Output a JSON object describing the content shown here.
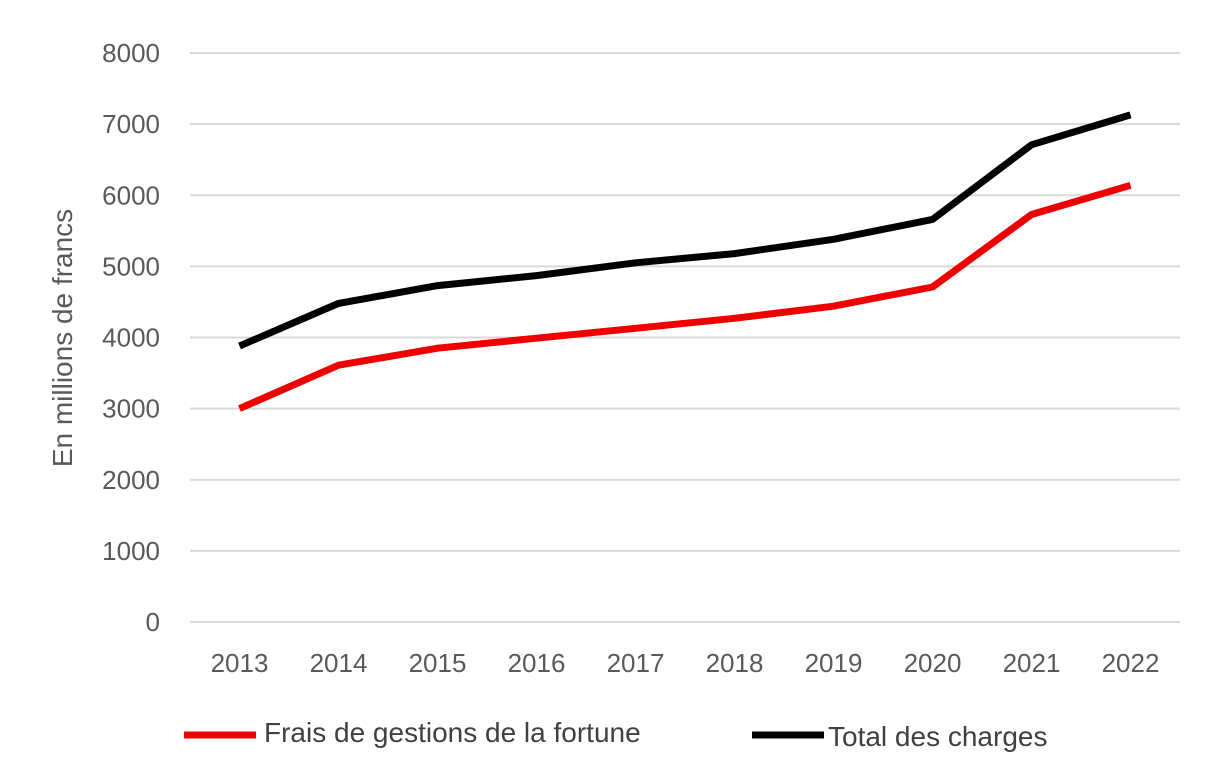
{
  "chart_data": {
    "type": "line",
    "title": "",
    "xlabel": "",
    "ylabel": "En millions de francs",
    "categories": [
      "2013",
      "2014",
      "2015",
      "2016",
      "2017",
      "2018",
      "2019",
      "2020",
      "2021",
      "2022"
    ],
    "ylim": [
      0,
      8000
    ],
    "yticks": [
      "0",
      "1000",
      "2000",
      "3000",
      "4000",
      "5000",
      "6000",
      "7000",
      "8000"
    ],
    "grid": true,
    "legend_position": "bottom",
    "series": [
      {
        "name": "Frais de gestions de la fortune",
        "color": "#ee0000",
        "values": [
          3000,
          3610,
          3850,
          3990,
          4130,
          4270,
          4440,
          4710,
          5730,
          6140
        ]
      },
      {
        "name": "Total des charges",
        "color": "#000000",
        "values": [
          3880,
          4480,
          4730,
          4870,
          5050,
          5180,
          5380,
          5660,
          6710,
          7130
        ]
      }
    ]
  }
}
